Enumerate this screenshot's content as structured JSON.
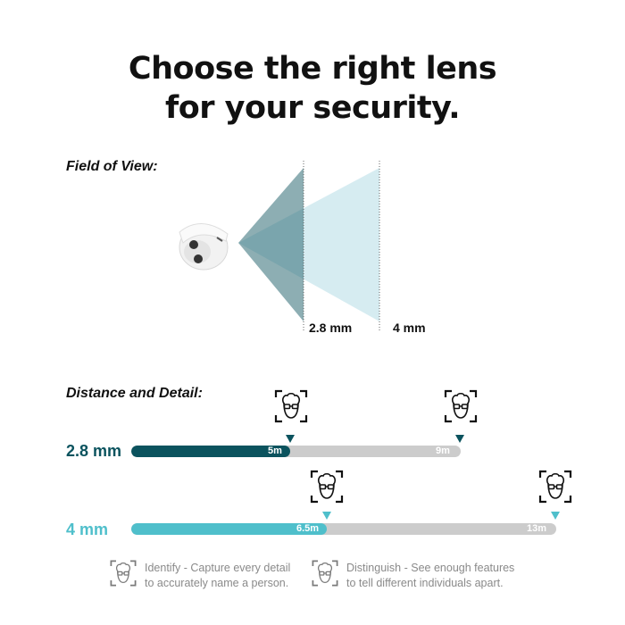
{
  "title_line1": "Choose the right lens",
  "title_line2": "for your security.",
  "fov": {
    "heading": "Field of View:",
    "lens_a": "2.8 mm",
    "lens_b": "4 mm"
  },
  "distance": {
    "heading": "Distance and Detail:",
    "rows": [
      {
        "label": "2.8 mm",
        "identify": "5m",
        "distinguish": "9m",
        "identify_m": 5,
        "distinguish_m": 9,
        "color": "#0b535e"
      },
      {
        "label": "4 mm",
        "identify": "6.5m",
        "distinguish": "13m",
        "identify_m": 6.5,
        "distinguish_m": 13,
        "color": "#4fbfcb"
      }
    ]
  },
  "legend": {
    "identify_line1": "Identify - Capture every detail",
    "identify_line2": "to accurately name a person.",
    "distinguish_line1": "Distinguish - See enough features",
    "distinguish_line2": "to tell different individuals apart."
  },
  "colors": {
    "dark": "#0b535e",
    "teal": "#4fbfcb",
    "bar_bg": "#cccccc"
  }
}
